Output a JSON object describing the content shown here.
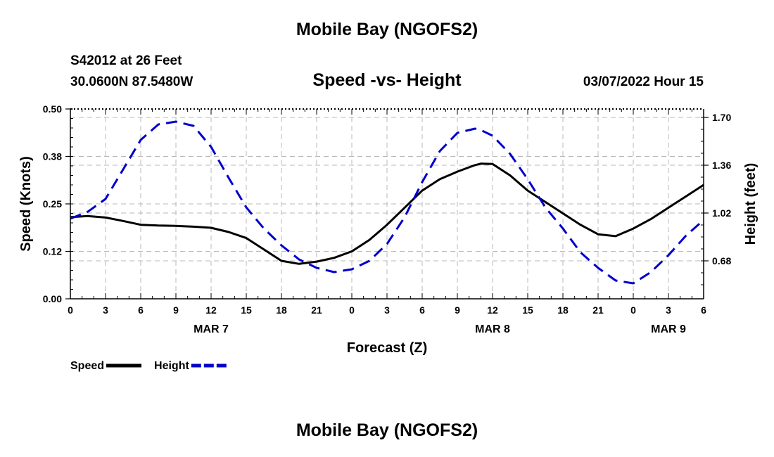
{
  "header": {
    "title": "Mobile Bay (NGOFS2)",
    "station": "S42012 at 26 Feet",
    "coords": "30.0600N  87.5480W",
    "subtitle": "Speed -vs- Height",
    "datetime": "03/07/2022 Hour 15",
    "bottom_title": "Mobile Bay (NGOFS2)"
  },
  "chart_data": {
    "type": "line",
    "title": "Speed -vs- Height",
    "xlabel": "Forecast (Z)",
    "ylabel": "Speed (Knots)",
    "ylabel_right": "Height (feet)",
    "x": [
      0,
      1.5,
      3,
      4.5,
      6,
      7.5,
      9,
      10.5,
      12,
      13.5,
      15,
      16.5,
      18,
      19.5,
      21,
      22.5,
      24,
      25.5,
      27,
      28.5,
      30,
      31.5,
      33,
      34.5,
      35,
      36,
      37.5,
      39,
      40.5,
      42,
      43.5,
      45,
      46.5,
      48,
      49.5,
      51,
      52.5,
      54
    ],
    "x_tick_values": [
      0,
      3,
      6,
      9,
      12,
      15,
      18,
      21,
      24,
      27,
      30,
      33,
      36,
      39,
      42,
      45,
      48,
      51,
      54
    ],
    "x_tick_labels": [
      "0",
      "3",
      "6",
      "9",
      "12",
      "15",
      "18",
      "21",
      "0",
      "3",
      "6",
      "9",
      "12",
      "15",
      "18",
      "21",
      "0",
      "3",
      "6"
    ],
    "date_labels": [
      {
        "label": "MAR 7",
        "x": 12
      },
      {
        "label": "MAR 8",
        "x": 36
      },
      {
        "label": "MAR 9",
        "x": 51
      }
    ],
    "xlim": [
      0,
      54
    ],
    "ylim_left": [
      0,
      0.5
    ],
    "y_left_ticks": [
      "0.00",
      "0.12",
      "0.25",
      "0.38",
      "0.50"
    ],
    "y_left_tick_values": [
      0,
      0.125,
      0.25,
      0.375,
      0.5
    ],
    "ylim_right": [
      0.41,
      1.76
    ],
    "y_right_ticks": [
      "0.68",
      "1.02",
      "1.36",
      "1.70"
    ],
    "y_right_tick_values": [
      0.68,
      1.02,
      1.36,
      1.7
    ],
    "grid": true,
    "series": [
      {
        "name": "Speed",
        "axis": "left",
        "color": "#000000",
        "dash": "solid",
        "values": [
          0.215,
          0.218,
          0.214,
          0.205,
          0.195,
          0.193,
          0.192,
          0.19,
          0.187,
          0.176,
          0.16,
          0.13,
          0.1,
          0.092,
          0.098,
          0.108,
          0.125,
          0.155,
          0.195,
          0.24,
          0.285,
          0.315,
          0.335,
          0.352,
          0.356,
          0.355,
          0.325,
          0.285,
          0.255,
          0.225,
          0.195,
          0.17,
          0.165,
          0.185,
          0.21,
          0.24,
          0.27,
          0.3
        ]
      },
      {
        "name": "Height",
        "axis": "right",
        "color": "#0000cc",
        "dash": "dashed",
        "values": [
          0.98,
          1.03,
          1.12,
          1.33,
          1.54,
          1.65,
          1.67,
          1.64,
          1.49,
          1.27,
          1.06,
          0.91,
          0.79,
          0.69,
          0.63,
          0.6,
          0.62,
          0.68,
          0.8,
          0.99,
          1.24,
          1.46,
          1.59,
          1.62,
          1.61,
          1.57,
          1.44,
          1.26,
          1.06,
          0.91,
          0.74,
          0.63,
          0.54,
          0.52,
          0.6,
          0.72,
          0.86,
          0.97
        ]
      }
    ],
    "legend": [
      {
        "label": "Speed",
        "color": "#000000",
        "dash": "solid"
      },
      {
        "label": "Height",
        "color": "#0000cc",
        "dash": "dashed"
      }
    ]
  }
}
